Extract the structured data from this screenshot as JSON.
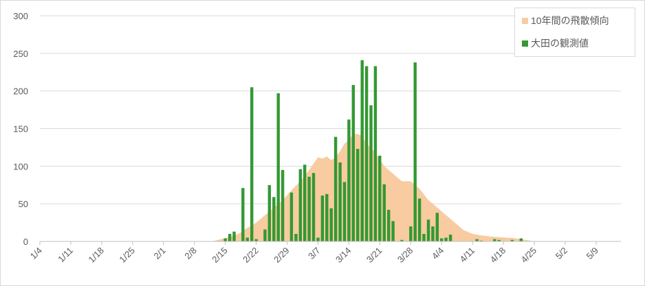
{
  "chart_data": {
    "type": "bar",
    "title": "",
    "xlabel": "",
    "ylabel": "",
    "ylim": [
      0,
      300
    ],
    "yticks": [
      "0",
      "50",
      "100",
      "150",
      "200",
      "250",
      "300"
    ],
    "grid": true,
    "legend_position": "top-right",
    "x_start": "1/4",
    "xticks": [
      "1/4",
      "1/11",
      "1/18",
      "1/25",
      "2/1",
      "2/8",
      "2/15",
      "2/22",
      "2/29",
      "3/7",
      "3/14",
      "3/21",
      "3/28",
      "4/4",
      "4/11",
      "4/18",
      "4/25",
      "5/2",
      "5/9"
    ],
    "series": [
      {
        "name": "10年間の飛散傾向",
        "kind": "area",
        "color": "#f8cba0",
        "points": [
          [
            "2/12",
            0
          ],
          [
            "2/14",
            3
          ],
          [
            "2/16",
            6
          ],
          [
            "2/18",
            10
          ],
          [
            "2/20",
            18
          ],
          [
            "2/22",
            25
          ],
          [
            "2/24",
            35
          ],
          [
            "2/26",
            45
          ],
          [
            "2/28",
            55
          ],
          [
            "3/1",
            68
          ],
          [
            "3/3",
            80
          ],
          [
            "3/5",
            95
          ],
          [
            "3/7",
            112
          ],
          [
            "3/8",
            110
          ],
          [
            "3/9",
            113
          ],
          [
            "3/10",
            108
          ],
          [
            "3/11",
            112
          ],
          [
            "3/12",
            120
          ],
          [
            "3/13",
            130
          ],
          [
            "3/14",
            135
          ],
          [
            "3/15",
            143
          ],
          [
            "3/16",
            143
          ],
          [
            "3/17",
            140
          ],
          [
            "3/18",
            130
          ],
          [
            "3/20",
            118
          ],
          [
            "3/22",
            100
          ],
          [
            "3/24",
            90
          ],
          [
            "3/26",
            80
          ],
          [
            "3/28",
            80
          ],
          [
            "3/30",
            70
          ],
          [
            "4/1",
            55
          ],
          [
            "4/3",
            45
          ],
          [
            "4/5",
            35
          ],
          [
            "4/7",
            25
          ],
          [
            "4/9",
            15
          ],
          [
            "4/11",
            10
          ],
          [
            "4/13",
            8
          ],
          [
            "4/16",
            6
          ],
          [
            "4/19",
            5
          ],
          [
            "4/21",
            4
          ],
          [
            "4/24",
            1
          ],
          [
            "4/25",
            0
          ]
        ]
      },
      {
        "name": "大田の観測値",
        "kind": "bar",
        "color": "#339933",
        "points": [
          [
            "2/15",
            4
          ],
          [
            "2/16",
            10
          ],
          [
            "2/17",
            13
          ],
          [
            "2/19",
            71
          ],
          [
            "2/20",
            5
          ],
          [
            "2/21",
            205
          ],
          [
            "2/22",
            3
          ],
          [
            "2/24",
            16
          ],
          [
            "2/25",
            75
          ],
          [
            "2/26",
            59
          ],
          [
            "2/27",
            197
          ],
          [
            "2/28",
            95
          ],
          [
            "3/1",
            65
          ],
          [
            "3/2",
            10
          ],
          [
            "3/3",
            96
          ],
          [
            "3/4",
            102
          ],
          [
            "3/5",
            86
          ],
          [
            "3/6",
            91
          ],
          [
            "3/7",
            5
          ],
          [
            "3/8",
            61
          ],
          [
            "3/9",
            63
          ],
          [
            "3/10",
            44
          ],
          [
            "3/11",
            139
          ],
          [
            "3/12",
            105
          ],
          [
            "3/13",
            79
          ],
          [
            "3/14",
            162
          ],
          [
            "3/15",
            208
          ],
          [
            "3/16",
            123
          ],
          [
            "3/17",
            241
          ],
          [
            "3/18",
            233
          ],
          [
            "3/19",
            181
          ],
          [
            "3/20",
            233
          ],
          [
            "3/21",
            114
          ],
          [
            "3/22",
            76
          ],
          [
            "3/23",
            42
          ],
          [
            "3/24",
            27
          ],
          [
            "3/26",
            2
          ],
          [
            "3/28",
            20
          ],
          [
            "3/29",
            238
          ],
          [
            "3/30",
            57
          ],
          [
            "3/31",
            10
          ],
          [
            "4/1",
            29
          ],
          [
            "4/2",
            20
          ],
          [
            "4/3",
            38
          ],
          [
            "4/4",
            4
          ],
          [
            "4/5",
            5
          ],
          [
            "4/6",
            9
          ],
          [
            "4/12",
            3
          ],
          [
            "4/13",
            1
          ],
          [
            "4/16",
            3
          ],
          [
            "4/17",
            2
          ],
          [
            "4/20",
            2
          ],
          [
            "4/22",
            4
          ]
        ]
      }
    ]
  }
}
